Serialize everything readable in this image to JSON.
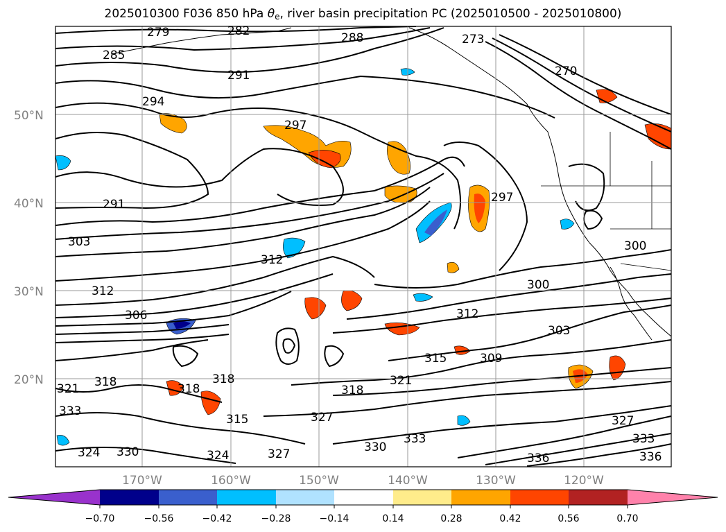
{
  "title": {
    "prefix": "2025010300 F036 850 hPa ",
    "theta_symbol": "θ",
    "theta_sub": "e",
    "suffix": ", river basin precipitation PC (2025010500 - 2025010800)"
  },
  "axes": {
    "lat_ticks": [
      "50°N",
      "40°N",
      "30°N",
      "20°N"
    ],
    "lon_ticks": [
      "170°W",
      "160°W",
      "150°W",
      "140°W",
      "130°W",
      "120°W"
    ]
  },
  "colorbar": {
    "ticks": [
      "−0.70",
      "−0.56",
      "−0.42",
      "−0.28",
      "−0.14",
      "0.14",
      "0.28",
      "0.42",
      "0.56",
      "0.70"
    ],
    "colors": {
      "under": "#9932cc",
      "c1": "#00008b",
      "c2": "#3a5fcd",
      "c3": "#00bfff",
      "c4": "#b0e2ff",
      "c5": "#ffffff",
      "c6": "#ffec8b",
      "c7": "#ffa500",
      "c8": "#ff4500",
      "c9": "#b22222",
      "over": "#ff82ab"
    }
  },
  "contour_labels": [
    "279",
    "282",
    "285",
    "288",
    "291",
    "294",
    "297",
    "291",
    "303",
    "312",
    "306",
    "312",
    "300",
    "312",
    "303",
    "309",
    "315",
    "318",
    "321",
    "318",
    "327",
    "330",
    "333",
    "330",
    "327",
    "324",
    "315",
    "318",
    "321",
    "318",
    "324",
    "333",
    "336",
    "327",
    "333",
    "336",
    "297",
    "300",
    "270",
    "273"
  ]
}
